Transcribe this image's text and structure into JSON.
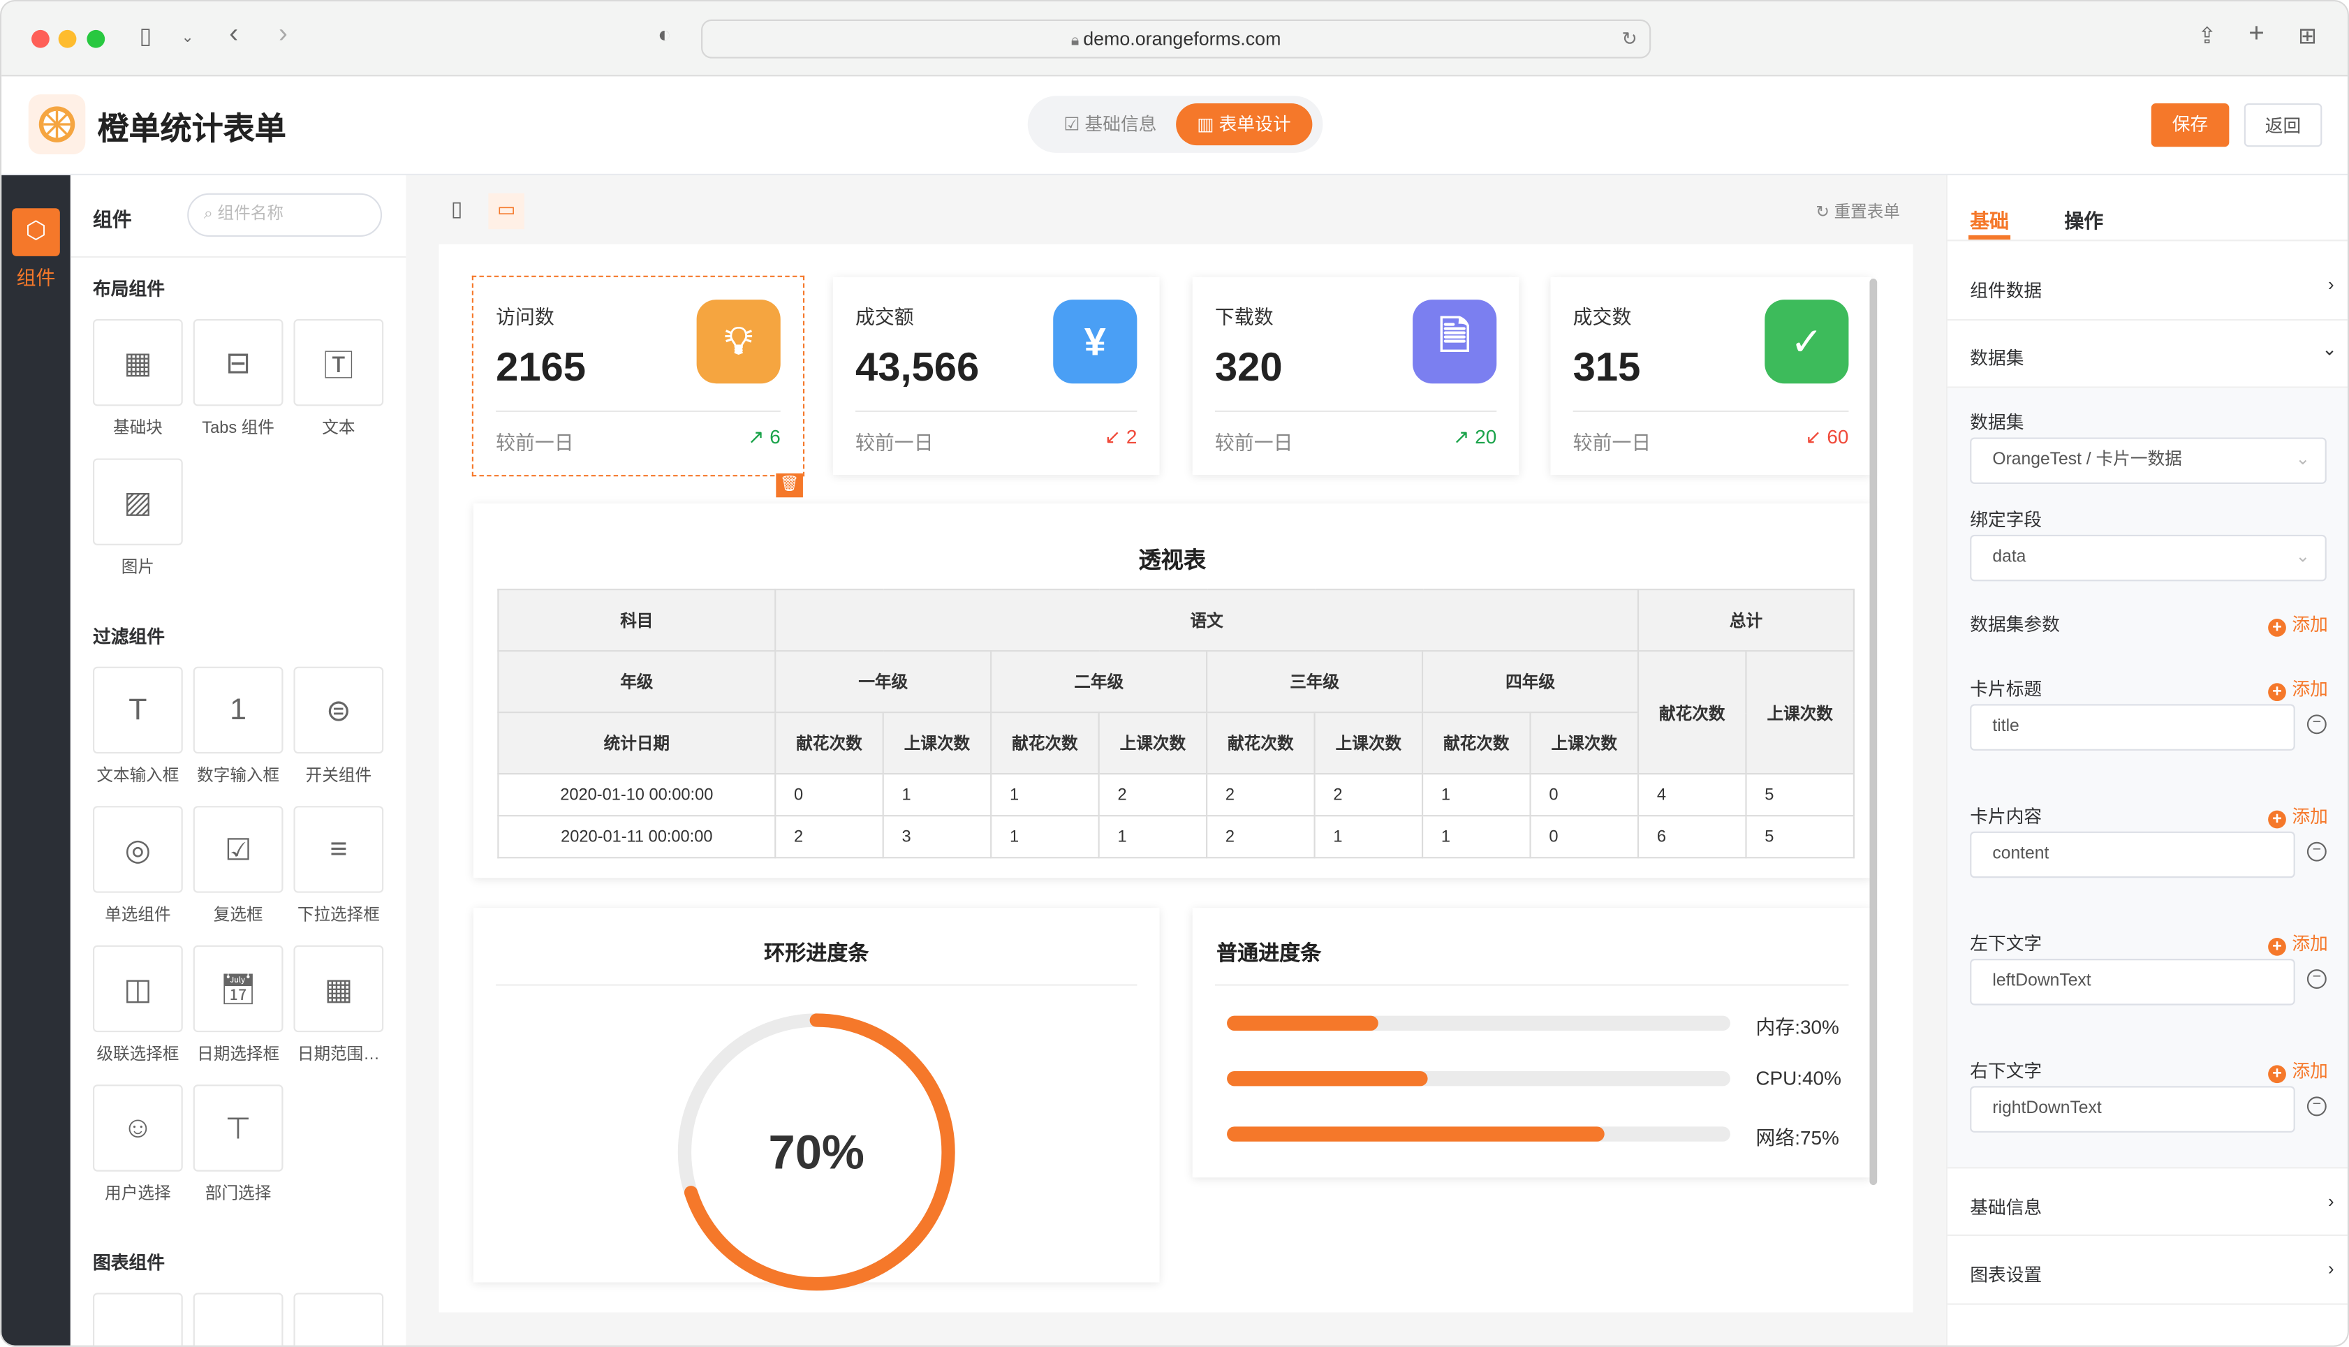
{
  "browser": {
    "url": "demo.orangeforms.com"
  },
  "header": {
    "title": "橙单统计表单",
    "tabs": [
      {
        "label": "基础信息",
        "active": false
      },
      {
        "label": "表单设计",
        "active": true
      }
    ],
    "save": "保存",
    "back": "返回"
  },
  "rail": {
    "label": "组件"
  },
  "components": {
    "title": "组件",
    "search_placeholder": "组件名称",
    "sections": [
      {
        "title": "布局组件",
        "items": [
          {
            "label": "基础块",
            "icon": "grid-icon"
          },
          {
            "label": "Tabs 组件",
            "icon": "tabs-icon"
          },
          {
            "label": "文本",
            "icon": "text-icon"
          },
          {
            "label": "图片",
            "icon": "image-icon"
          }
        ]
      },
      {
        "title": "过滤组件",
        "items": [
          {
            "label": "文本输入框",
            "icon": "text-input-icon"
          },
          {
            "label": "数字输入框",
            "icon": "number-input-icon"
          },
          {
            "label": "开关组件",
            "icon": "switch-icon"
          },
          {
            "label": "单选组件",
            "icon": "radio-icon"
          },
          {
            "label": "复选框",
            "icon": "checkbox-icon"
          },
          {
            "label": "下拉选择框",
            "icon": "select-icon"
          },
          {
            "label": "级联选择框",
            "icon": "cascader-icon"
          },
          {
            "label": "日期选择框",
            "icon": "date-icon"
          },
          {
            "label": "日期范围…",
            "icon": "date-range-icon"
          },
          {
            "label": "用户选择",
            "icon": "user-icon"
          },
          {
            "label": "部门选择",
            "icon": "org-icon"
          }
        ]
      },
      {
        "title": "图表组件",
        "items": []
      }
    ]
  },
  "canvas": {
    "reset": "重置表单",
    "cards": [
      {
        "label": "访问数",
        "value": "2165",
        "left": "较前一日",
        "right": "6",
        "trend": "up",
        "color": "#f5a540",
        "icon": "lightbulb-icon",
        "selected": true
      },
      {
        "label": "成交额",
        "value": "43,566",
        "left": "较前一日",
        "right": "2",
        "trend": "down",
        "color": "#4a9ff5",
        "icon": "yen-icon",
        "selected": false
      },
      {
        "label": "下载数",
        "value": "320",
        "left": "较前一日",
        "right": "20",
        "trend": "up",
        "color": "#7b7ff0",
        "icon": "document-icon",
        "selected": false
      },
      {
        "label": "成交数",
        "value": "315",
        "left": "较前一日",
        "right": "60",
        "trend": "down",
        "color": "#3dbb5b",
        "icon": "clipboard-check-icon",
        "selected": false
      }
    ],
    "pivot": {
      "title": "透视表",
      "h1": [
        "科目",
        "语文",
        "总计"
      ],
      "h2": [
        "年级",
        "一年级",
        "二年级",
        "三年级",
        "四年级"
      ],
      "h3": [
        "统计日期",
        "献花次数",
        "上课次数",
        "献花次数",
        "上课次数",
        "献花次数",
        "上课次数",
        "献花次数",
        "上课次数"
      ],
      "totals": [
        "献花次数",
        "上课次数"
      ],
      "rows": [
        [
          "2020-01-10 00:00:00",
          "0",
          "1",
          "1",
          "2",
          "2",
          "2",
          "1",
          "0",
          "4",
          "5"
        ],
        [
          "2020-01-11 00:00:00",
          "2",
          "3",
          "1",
          "1",
          "2",
          "1",
          "1",
          "0",
          "6",
          "5"
        ]
      ]
    },
    "ring": {
      "title": "环形进度条",
      "value": 70,
      "label": "70%"
    },
    "progress": {
      "title": "普通进度条",
      "bars": [
        {
          "label": "内存:30%",
          "value": 30
        },
        {
          "label": "CPU:40%",
          "value": 40
        },
        {
          "label": "网络:75%",
          "value": 75
        }
      ]
    }
  },
  "props": {
    "tabs": [
      {
        "label": "基础",
        "active": true
      },
      {
        "label": "操作",
        "active": false
      }
    ],
    "component_data": "组件数据",
    "dataset_section": "数据集",
    "dataset_label": "数据集",
    "dataset_value": "OrangeTest / 卡片一数据",
    "field_label": "绑定字段",
    "field_value": "data",
    "params_label": "数据集参数",
    "add": "添加",
    "fields": [
      {
        "label": "卡片标题",
        "value": "title"
      },
      {
        "label": "卡片内容",
        "value": "content"
      },
      {
        "label": "左下文字",
        "value": "leftDownText"
      },
      {
        "label": "右下文字",
        "value": "rightDownText"
      }
    ],
    "basic_info": "基础信息",
    "chart_settings": "图表设置"
  },
  "colors": {
    "accent": "#f5782a",
    "rail": "#2b2f36",
    "up": "#1aa34a",
    "down": "#f04a3a"
  }
}
